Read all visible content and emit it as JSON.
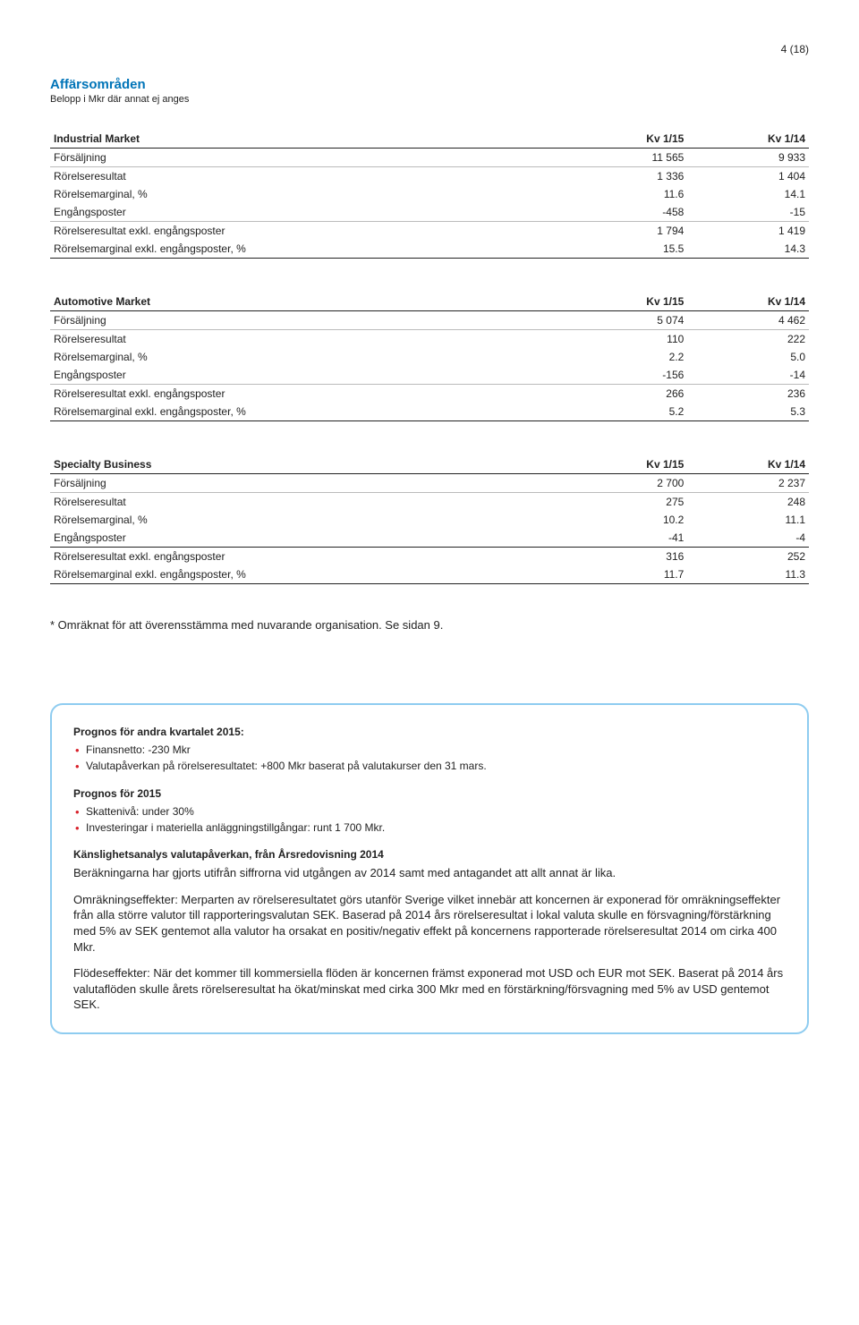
{
  "pageNumber": "4 (18)",
  "header": {
    "title": "Affärsområden",
    "subtitle": "Belopp i Mkr där annat ej anges"
  },
  "tables": [
    {
      "title": "Industrial Market",
      "col1": "Kv 1/15",
      "col2": "Kv 1/14",
      "rows": [
        {
          "label": "Försäljning",
          "v1": "11 565",
          "v2": "9 933",
          "sep": "thin"
        },
        {
          "label": "Rörelseresultat",
          "v1": "1 336",
          "v2": "1 404"
        },
        {
          "label": "Rörelsemarginal, %",
          "v1": "11.6",
          "v2": "14.1"
        },
        {
          "label": "Engångsposter",
          "v1": "-458",
          "v2": "-15",
          "sep": "thin"
        },
        {
          "label": "Rörelseresultat exkl. engångsposter",
          "v1": "1 794",
          "v2": "1 419"
        },
        {
          "label": "Rörelsemarginal exkl. engångsposter, %",
          "v1": "15.5",
          "v2": "14.3",
          "sep": "bottom"
        }
      ]
    },
    {
      "title": "Automotive Market",
      "col1": "Kv 1/15",
      "col2": "Kv 1/14",
      "rows": [
        {
          "label": "Försäljning",
          "v1": "5 074",
          "v2": "4 462",
          "sep": "thin"
        },
        {
          "label": "Rörelseresultat",
          "v1": "110",
          "v2": "222"
        },
        {
          "label": "Rörelsemarginal, %",
          "v1": "2.2",
          "v2": "5.0"
        },
        {
          "label": "Engångsposter",
          "v1": "-156",
          "v2": "-14",
          "sep": "thin"
        },
        {
          "label": "Rörelseresultat exkl. engångsposter",
          "v1": "266",
          "v2": "236"
        },
        {
          "label": "Rörelsemarginal exkl. engångsposter, %",
          "v1": "5.2",
          "v2": "5.3",
          "sep": "bottom"
        }
      ]
    },
    {
      "title": "Specialty Business",
      "col1": "Kv 1/15",
      "col2": "Kv 1/14",
      "rows": [
        {
          "label": "Försäljning",
          "v1": "2 700",
          "v2": "2 237",
          "sep": "thin"
        },
        {
          "label": "Rörelseresultat",
          "v1": "275",
          "v2": "248"
        },
        {
          "label": "Rörelsemarginal, %",
          "v1": "10.2",
          "v2": "11.1"
        },
        {
          "label": "Engångsposter",
          "v1": "-41",
          "v2": "-4",
          "sep": "bottom"
        },
        {
          "label": "Rörelseresultat exkl. engångsposter",
          "v1": "316",
          "v2": "252"
        },
        {
          "label": "Rörelsemarginal exkl. engångsposter, %",
          "v1": "11.7",
          "v2": "11.3",
          "sep": "bottom"
        }
      ]
    }
  ],
  "footnote": "* Omräknat för att överensstämma med nuvarande organisation. Se sidan 9.",
  "box": {
    "heading1": "Prognos för andra kvartalet 2015:",
    "items1": [
      "Finansnetto: -230 Mkr",
      "Valutapåverkan på rörelseresultatet: +800 Mkr baserat på valutakurser den 31 mars."
    ],
    "heading2": "Prognos för 2015",
    "items2": [
      "Skattenivå: under 30%",
      "Investeringar i materiella anläggningstillgångar: runt 1 700 Mkr."
    ],
    "heading3": "Känslighetsanalys valutapåverkan, från Årsredovisning 2014",
    "para3": "Beräkningarna har gjorts utifrån siffrorna vid utgången av 2014 samt med antagandet att allt annat är lika.",
    "para4": "Omräkningseffekter: Merparten av rörelseresultatet görs utanför Sverige vilket innebär att koncernen är exponerad för omräkningseffekter från alla större valutor till rapporteringsvalutan SEK. Baserad på 2014 års rörelseresultat i lokal valuta skulle en försvagning/förstärkning med 5% av SEK gentemot alla valutor ha orsakat en positiv/negativ effekt på koncernens rapporterade rörelseresultat 2014 om cirka 400 Mkr.",
    "para5": "Flödeseffekter: När det kommer till kommersiella flöden är koncernen främst exponerad mot USD och EUR mot SEK. Baserat på 2014 års valutaflöden skulle årets rörelseresultat ha ökat/minskat med cirka 300 Mkr med en förstärkning/försvagning med 5% av USD gentemot SEK."
  }
}
